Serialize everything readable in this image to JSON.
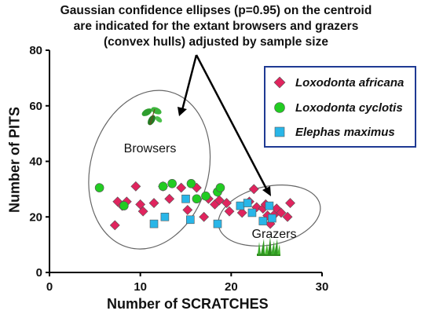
{
  "annotation": {
    "line1": "Gaussian confidence ellipses (p=0.95) on the centroid",
    "line2": "are indicated for the extant browsers and grazers",
    "line3": "(convex hulls) adjusted by sample size"
  },
  "hull_labels": {
    "browsers": "Browsers",
    "grazers": "Grazers"
  },
  "icons": {
    "browsers": "green-leaves-icon",
    "grazers": "grass-icon"
  },
  "colors": {
    "africana": "#e0245e",
    "cyclotis": "#22cc22",
    "maximus": "#29b6e8",
    "legend_border": "#1f3a93",
    "ellipse": "#666666"
  },
  "chart_data": {
    "type": "scatter",
    "xlabel": "Number of SCRATCHES",
    "ylabel": "Number of PITS",
    "xlim": [
      0,
      30
    ],
    "ylim": [
      0,
      80
    ],
    "xticks": [
      0,
      10,
      20,
      30
    ],
    "yticks": [
      0,
      20,
      40,
      60,
      80
    ],
    "legend_position": "top-right",
    "series": [
      {
        "name": "Loxodonta africana",
        "marker": "diamond",
        "points": [
          [
            7.2,
            17
          ],
          [
            7.5,
            25.5
          ],
          [
            8,
            24
          ],
          [
            8.5,
            25.5
          ],
          [
            9.5,
            31
          ],
          [
            10,
            24.5
          ],
          [
            10.3,
            22
          ],
          [
            11.5,
            25
          ],
          [
            12.5,
            31
          ],
          [
            13.2,
            26.5
          ],
          [
            14.5,
            30.5
          ],
          [
            15.2,
            22.5
          ],
          [
            16.2,
            30.5
          ],
          [
            17,
            20
          ],
          [
            17.5,
            26.5
          ],
          [
            18.2,
            24.5
          ],
          [
            18.5,
            29
          ],
          [
            18.7,
            26
          ],
          [
            19.5,
            25
          ],
          [
            19.8,
            22
          ],
          [
            21.2,
            21.5
          ],
          [
            22,
            25.5
          ],
          [
            22.5,
            30
          ],
          [
            22.8,
            23.5
          ],
          [
            23.5,
            23
          ],
          [
            23.8,
            24.5
          ],
          [
            24,
            20.5
          ],
          [
            24.3,
            17.5
          ],
          [
            24.8,
            21
          ],
          [
            25,
            23
          ],
          [
            25.5,
            21.5
          ],
          [
            26.2,
            20
          ],
          [
            26.5,
            25
          ]
        ]
      },
      {
        "name": "Loxodonta cyclotis",
        "marker": "circle",
        "points": [
          [
            5.5,
            30.5
          ],
          [
            8.2,
            24
          ],
          [
            12.5,
            31
          ],
          [
            13.5,
            32
          ],
          [
            15.6,
            32
          ],
          [
            16.2,
            26.5
          ],
          [
            17.2,
            27.5
          ],
          [
            18.5,
            29
          ],
          [
            18.8,
            30.5
          ]
        ]
      },
      {
        "name": "Elephas maximus",
        "marker": "square",
        "points": [
          [
            11.5,
            17.5
          ],
          [
            12.7,
            20
          ],
          [
            15,
            26.5
          ],
          [
            15.5,
            19
          ],
          [
            18.5,
            17.5
          ],
          [
            21,
            24
          ],
          [
            21.8,
            25
          ],
          [
            22.3,
            21.5
          ],
          [
            23.5,
            18.5
          ],
          [
            24.2,
            24
          ],
          [
            24.5,
            19.5
          ]
        ]
      }
    ],
    "ellipses": [
      {
        "name": "browsers",
        "cx": 11,
        "cy": 37,
        "rx": 6.5,
        "ry": 29,
        "rotation_deg": 15
      },
      {
        "name": "grazers",
        "cx": 24.2,
        "cy": 20.5,
        "rx": 5.7,
        "ry": 10.5,
        "rotation_deg": -12
      }
    ]
  }
}
